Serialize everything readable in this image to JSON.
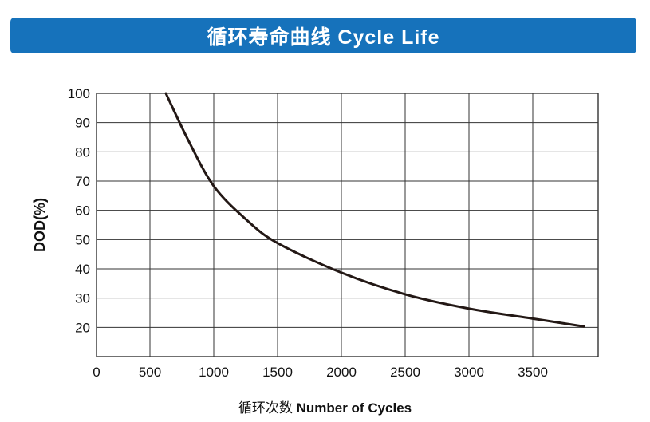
{
  "chart_data": {
    "type": "line",
    "title": "循环寿命曲线 Cycle Life",
    "xlabel_cn": "循环次数",
    "xlabel": "Number of Cycles",
    "ylabel": "DOD(%)",
    "x_ticks": [
      "0",
      "500",
      "1000",
      "1500",
      "2000",
      "2500",
      "3000",
      "3500"
    ],
    "y_ticks": [
      "100",
      "90",
      "80",
      "70",
      "60",
      "50",
      "40",
      "30",
      "20"
    ],
    "ylim": [
      10,
      100
    ],
    "grid": true,
    "series": [
      {
        "x": [
          625,
          800,
          1000,
          1250,
          1500,
          2000,
          2500,
          3000,
          3500,
          3900
        ],
        "y": [
          100,
          84,
          68.3,
          57,
          48.8,
          38.7,
          31.3,
          26.4,
          23.0,
          20.3
        ]
      }
    ],
    "colors": {
      "banner": "#1672bb",
      "line": "#231815"
    }
  }
}
